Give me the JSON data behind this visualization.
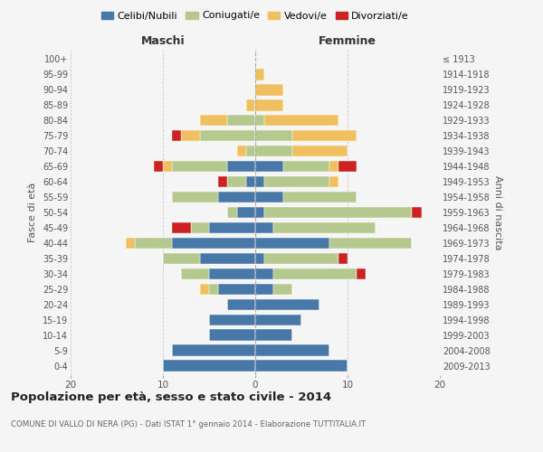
{
  "age_groups": [
    "0-4",
    "5-9",
    "10-14",
    "15-19",
    "20-24",
    "25-29",
    "30-34",
    "35-39",
    "40-44",
    "45-49",
    "50-54",
    "55-59",
    "60-64",
    "65-69",
    "70-74",
    "75-79",
    "80-84",
    "85-89",
    "90-94",
    "95-99",
    "100+"
  ],
  "birth_years": [
    "2009-2013",
    "2004-2008",
    "1999-2003",
    "1994-1998",
    "1989-1993",
    "1984-1988",
    "1979-1983",
    "1974-1978",
    "1969-1973",
    "1964-1968",
    "1959-1963",
    "1954-1958",
    "1949-1953",
    "1944-1948",
    "1939-1943",
    "1934-1938",
    "1929-1933",
    "1924-1928",
    "1919-1923",
    "1914-1918",
    "≤ 1913"
  ],
  "maschi": {
    "celibi": [
      10,
      9,
      5,
      5,
      3,
      4,
      5,
      6,
      9,
      5,
      2,
      4,
      1,
      3,
      0,
      0,
      0,
      0,
      0,
      0,
      0
    ],
    "coniugati": [
      0,
      0,
      0,
      0,
      0,
      1,
      3,
      4,
      4,
      2,
      1,
      5,
      2,
      6,
      1,
      6,
      3,
      0,
      0,
      0,
      0
    ],
    "vedovi": [
      0,
      0,
      0,
      0,
      0,
      1,
      0,
      0,
      1,
      0,
      0,
      0,
      0,
      1,
      1,
      2,
      3,
      1,
      0,
      0,
      0
    ],
    "divorziati": [
      0,
      0,
      0,
      0,
      0,
      0,
      0,
      0,
      0,
      2,
      0,
      0,
      1,
      1,
      0,
      1,
      0,
      0,
      0,
      0,
      0
    ]
  },
  "femmine": {
    "nubili": [
      10,
      8,
      4,
      5,
      7,
      2,
      2,
      1,
      8,
      2,
      1,
      3,
      1,
      3,
      0,
      0,
      0,
      0,
      0,
      0,
      0
    ],
    "coniugate": [
      0,
      0,
      0,
      0,
      0,
      2,
      9,
      8,
      9,
      11,
      16,
      8,
      7,
      5,
      4,
      4,
      1,
      0,
      0,
      0,
      0
    ],
    "vedove": [
      0,
      0,
      0,
      0,
      0,
      0,
      0,
      0,
      0,
      0,
      0,
      0,
      1,
      1,
      6,
      7,
      8,
      3,
      3,
      1,
      0
    ],
    "divorziate": [
      0,
      0,
      0,
      0,
      0,
      0,
      1,
      1,
      0,
      0,
      1,
      0,
      0,
      2,
      0,
      0,
      0,
      0,
      0,
      0,
      0
    ]
  },
  "colors": {
    "celibi": "#4878a8",
    "coniugati": "#b5c98e",
    "vedovi": "#f0c060",
    "divorziati": "#cc2222"
  },
  "title": "Popolazione per età, sesso e stato civile - 2014",
  "subtitle": "COMUNE DI VALLO DI NERA (PG) - Dati ISTAT 1° gennaio 2014 - Elaborazione TUTTITALIA.IT",
  "ylabel_left": "Fasce di età",
  "ylabel_right": "Anni di nascita",
  "xlabel_left": "Maschi",
  "xlabel_top_right": "Femmine",
  "xlim": 20,
  "background_color": "#f5f5f5",
  "grid_color": "#cccccc"
}
